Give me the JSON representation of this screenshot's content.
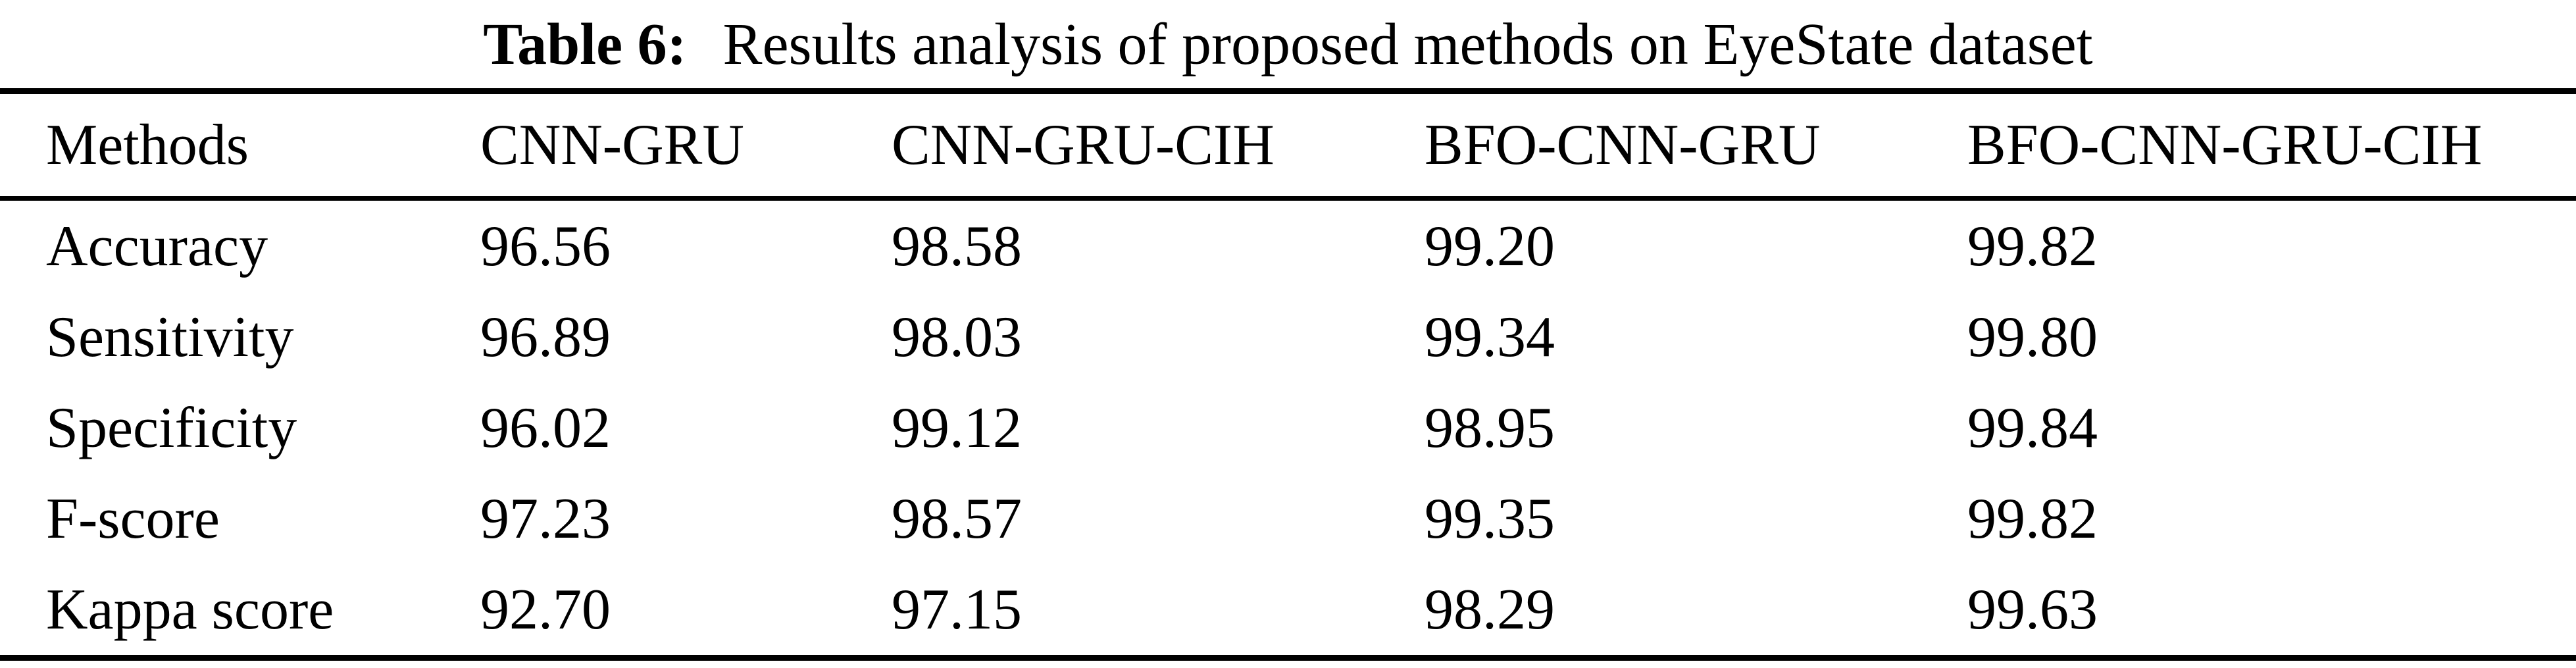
{
  "caption": {
    "label": "Table 6:",
    "text": "Results analysis of proposed methods on EyeState dataset"
  },
  "table": {
    "columns": [
      "Methods",
      "CNN-GRU",
      "CNN-GRU-CIH",
      "BFO-CNN-GRU",
      "BFO-CNN-GRU-CIH"
    ],
    "rows": [
      {
        "metric": "Accuracy",
        "values": [
          "96.56",
          "98.58",
          "99.20",
          "99.82"
        ]
      },
      {
        "metric": "Sensitivity",
        "values": [
          "96.89",
          "98.03",
          "99.34",
          "99.80"
        ]
      },
      {
        "metric": "Specificity",
        "values": [
          "96.02",
          "99.12",
          "98.95",
          "99.84"
        ]
      },
      {
        "metric": "F-score",
        "values": [
          "97.23",
          "98.57",
          "99.35",
          "99.82"
        ]
      },
      {
        "metric": "Kappa score",
        "values": [
          "92.70",
          "97.15",
          "98.29",
          "99.63"
        ]
      }
    ]
  },
  "chart_data": {
    "type": "table",
    "title": "Table 6: Results analysis of proposed methods on EyeState dataset",
    "categories": [
      "Accuracy",
      "Sensitivity",
      "Specificity",
      "F-score",
      "Kappa score"
    ],
    "series": [
      {
        "name": "CNN-GRU",
        "values": [
          96.56,
          96.89,
          96.02,
          97.23,
          92.7
        ]
      },
      {
        "name": "CNN-GRU-CIH",
        "values": [
          98.58,
          98.03,
          99.12,
          98.57,
          97.15
        ]
      },
      {
        "name": "BFO-CNN-GRU",
        "values": [
          99.2,
          99.34,
          98.95,
          99.35,
          98.29
        ]
      },
      {
        "name": "BFO-CNN-GRU-CIH",
        "values": [
          99.82,
          99.8,
          99.84,
          99.82,
          99.63
        ]
      }
    ]
  },
  "colors": {
    "background": "#ffffff",
    "text": "#000000",
    "rule": "#000000"
  }
}
